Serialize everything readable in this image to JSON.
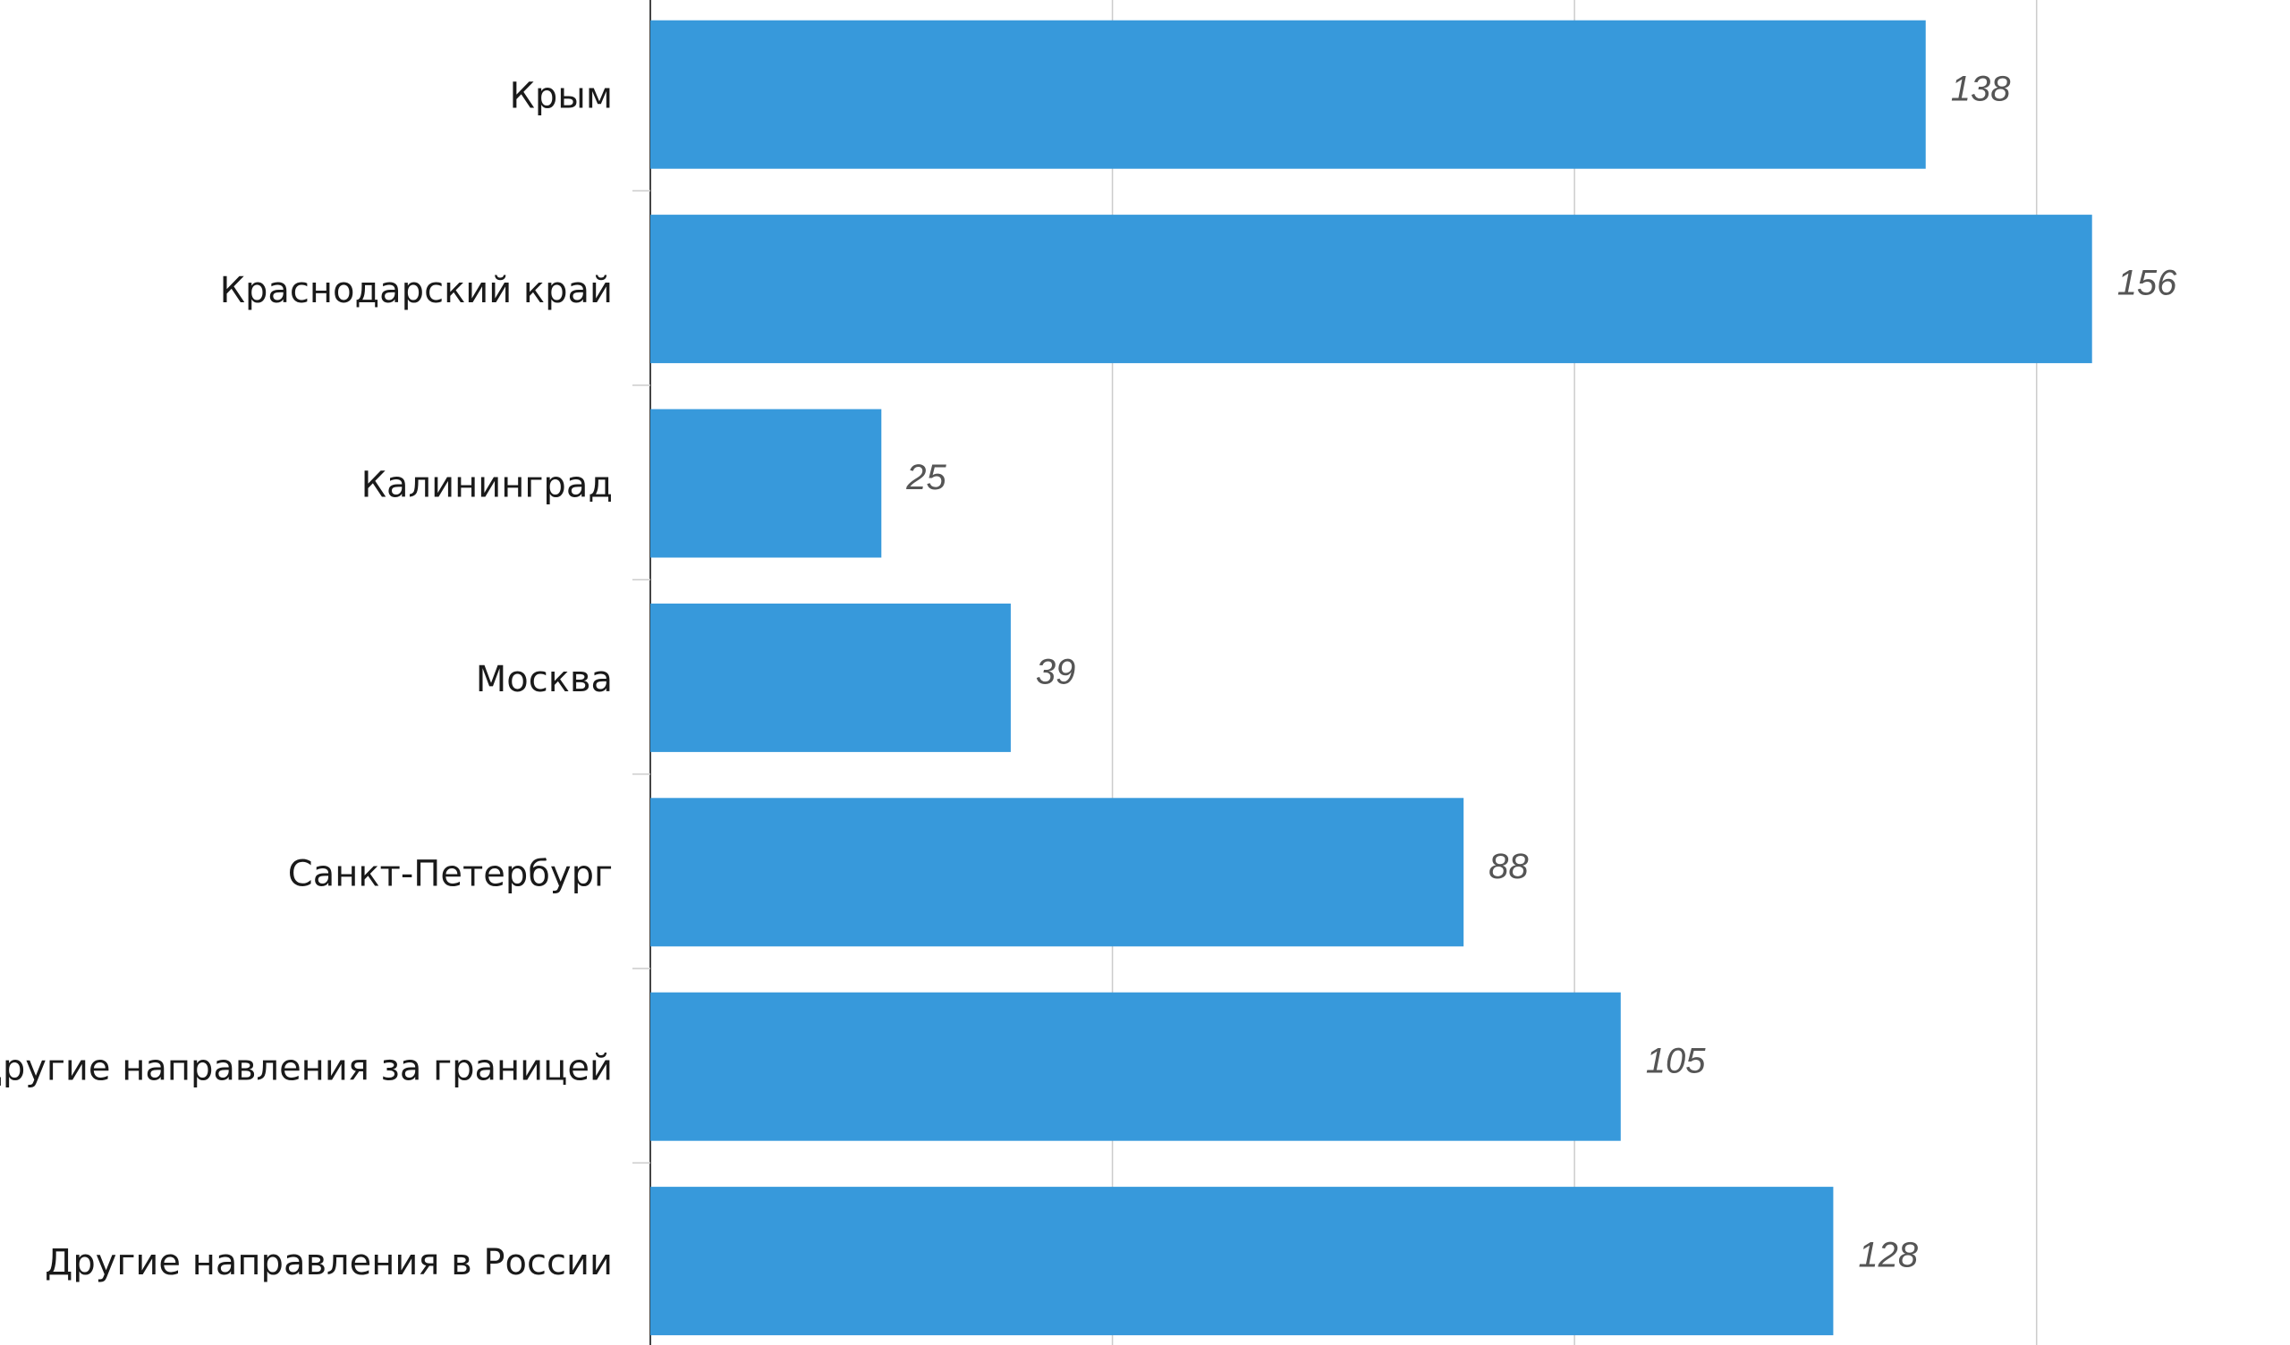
{
  "chart_data": {
    "type": "bar",
    "orientation": "horizontal",
    "categories": [
      "Крым",
      "Краснодарский край",
      "Калининград",
      "Москва",
      "Санкт-Петербург",
      "Другие направления за границей",
      "Другие направления в России"
    ],
    "values": [
      138,
      156,
      25,
      39,
      88,
      105,
      128
    ],
    "color": "#3799db",
    "xlim": [
      0,
      175
    ],
    "xticks": [
      0,
      50,
      100,
      150
    ],
    "grid": true
  }
}
